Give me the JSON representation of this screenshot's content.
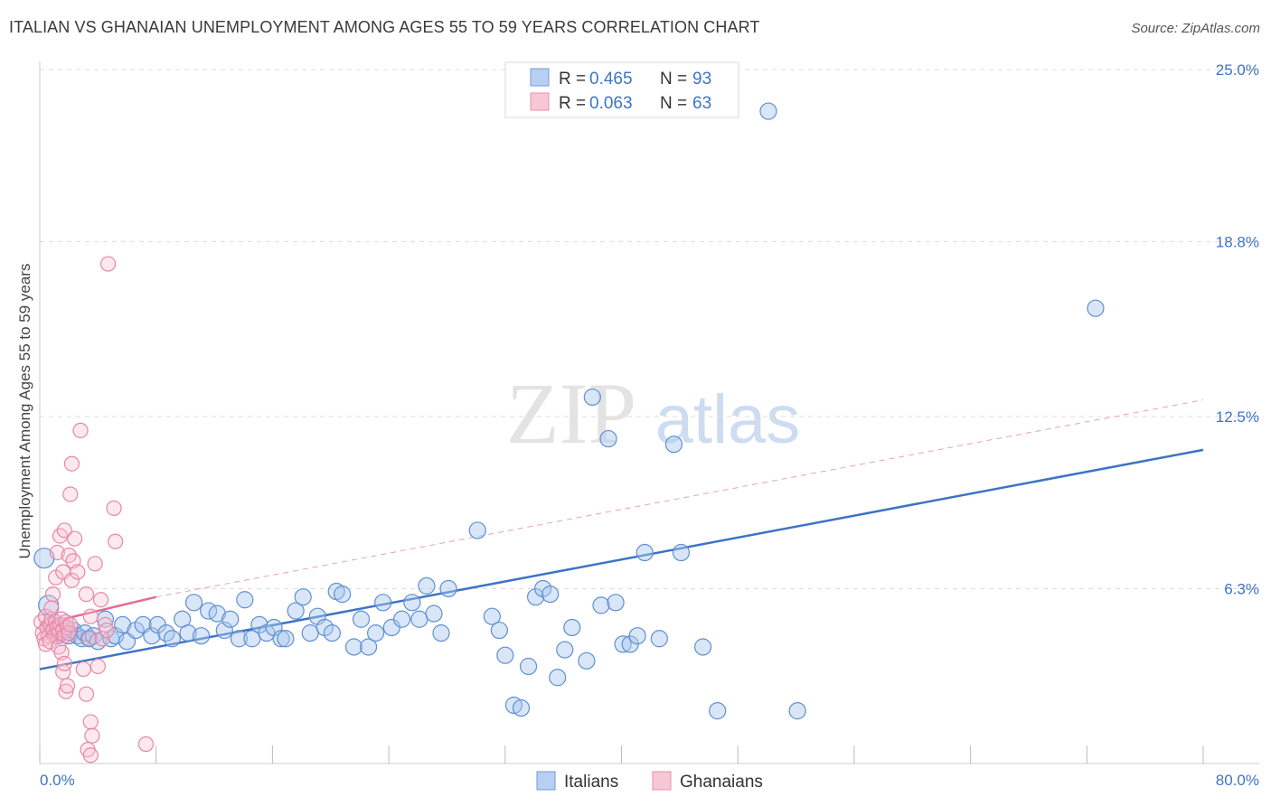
{
  "title": "ITALIAN VS GHANAIAN UNEMPLOYMENT AMONG AGES 55 TO 59 YEARS CORRELATION CHART",
  "source": "Source: ZipAtlas.com",
  "watermark": {
    "zip": "ZIP",
    "atlas": "atlas"
  },
  "colors": {
    "blue": "#3d74c4",
    "blue_fill": "#a9c8ee",
    "pink": "#e56b94",
    "pink_fill": "#f7bfd0",
    "grid": "#dddddd"
  },
  "legend": {
    "rows": [
      {
        "r_label": "R = ",
        "r_value": "0.465",
        "n_label": "N = ",
        "n_value": "93"
      },
      {
        "r_label": "R = ",
        "r_value": "0.063",
        "n_label": "N = ",
        "n_value": "63"
      }
    ]
  },
  "bottom_legend": [
    "Italians",
    "Ghanaians"
  ],
  "chart_data": {
    "type": "scatter",
    "title": "ITALIAN VS GHANAIAN UNEMPLOYMENT AMONG AGES 55 TO 59 YEARS CORRELATION CHART",
    "xlabel": "",
    "ylabel": "Unemployment Among Ages 55 to 59 years",
    "xlim": [
      0,
      80
    ],
    "ylim": [
      0,
      25
    ],
    "x_tick_labels": [
      "0.0%",
      "80.0%"
    ],
    "y_ticks": [
      6.3,
      12.5,
      18.8,
      25.0
    ],
    "y_tick_labels": [
      "6.3%",
      "12.5%",
      "18.8%",
      "25.0%"
    ],
    "series": [
      {
        "name": "Italians",
        "r": 0.465,
        "n": 93,
        "trend": {
          "x": [
            0,
            80
          ],
          "y": [
            3.4,
            11.3
          ],
          "style": "solid"
        },
        "points": [
          [
            0.3,
            7.4
          ],
          [
            0.6,
            5.7
          ],
          [
            0.8,
            5.0
          ],
          [
            1.0,
            4.8
          ],
          [
            1.2,
            4.6
          ],
          [
            1.5,
            4.7
          ],
          [
            1.8,
            4.9
          ],
          [
            2.0,
            4.6
          ],
          [
            2.3,
            4.8
          ],
          [
            2.6,
            4.6
          ],
          [
            2.9,
            4.5
          ],
          [
            3.1,
            4.7
          ],
          [
            3.4,
            4.5
          ],
          [
            3.7,
            4.6
          ],
          [
            4.0,
            4.4
          ],
          [
            4.5,
            5.2
          ],
          [
            4.9,
            4.5
          ],
          [
            5.2,
            4.6
          ],
          [
            5.7,
            5.0
          ],
          [
            6.0,
            4.4
          ],
          [
            6.6,
            4.8
          ],
          [
            7.1,
            5.0
          ],
          [
            7.7,
            4.6
          ],
          [
            8.1,
            5.0
          ],
          [
            8.7,
            4.7
          ],
          [
            9.1,
            4.5
          ],
          [
            9.8,
            5.2
          ],
          [
            10.2,
            4.7
          ],
          [
            10.6,
            5.8
          ],
          [
            11.1,
            4.6
          ],
          [
            11.6,
            5.5
          ],
          [
            12.2,
            5.4
          ],
          [
            12.7,
            4.8
          ],
          [
            13.1,
            5.2
          ],
          [
            13.7,
            4.5
          ],
          [
            14.1,
            5.9
          ],
          [
            14.6,
            4.5
          ],
          [
            15.1,
            5.0
          ],
          [
            15.6,
            4.7
          ],
          [
            16.1,
            4.9
          ],
          [
            16.6,
            4.5
          ],
          [
            16.9,
            4.5
          ],
          [
            17.6,
            5.5
          ],
          [
            18.1,
            6.0
          ],
          [
            18.6,
            4.7
          ],
          [
            19.1,
            5.3
          ],
          [
            19.6,
            4.9
          ],
          [
            20.1,
            4.7
          ],
          [
            20.4,
            6.2
          ],
          [
            20.8,
            6.1
          ],
          [
            21.6,
            4.2
          ],
          [
            22.1,
            5.2
          ],
          [
            22.6,
            4.2
          ],
          [
            23.1,
            4.7
          ],
          [
            23.6,
            5.8
          ],
          [
            24.2,
            4.9
          ],
          [
            24.9,
            5.2
          ],
          [
            25.6,
            5.8
          ],
          [
            26.1,
            5.2
          ],
          [
            26.6,
            6.4
          ],
          [
            27.1,
            5.4
          ],
          [
            27.6,
            4.7
          ],
          [
            28.1,
            6.3
          ],
          [
            30.1,
            8.4
          ],
          [
            31.1,
            5.3
          ],
          [
            31.6,
            4.8
          ],
          [
            32.0,
            3.9
          ],
          [
            32.6,
            2.1
          ],
          [
            33.1,
            2.0
          ],
          [
            33.6,
            3.5
          ],
          [
            34.1,
            6.0
          ],
          [
            34.6,
            6.3
          ],
          [
            35.1,
            6.1
          ],
          [
            35.6,
            3.1
          ],
          [
            36.1,
            4.1
          ],
          [
            36.6,
            4.9
          ],
          [
            37.6,
            3.7
          ],
          [
            38.0,
            13.2
          ],
          [
            38.6,
            5.7
          ],
          [
            39.1,
            11.7
          ],
          [
            39.6,
            5.8
          ],
          [
            40.1,
            4.3
          ],
          [
            40.6,
            4.3
          ],
          [
            41.1,
            4.6
          ],
          [
            41.6,
            7.6
          ],
          [
            42.6,
            4.5
          ],
          [
            43.6,
            11.5
          ],
          [
            44.1,
            7.6
          ],
          [
            45.6,
            4.2
          ],
          [
            46.6,
            1.9
          ],
          [
            50.1,
            23.5
          ],
          [
            52.1,
            1.9
          ],
          [
            72.6,
            16.4
          ]
        ]
      },
      {
        "name": "Ghanaians",
        "r": 0.063,
        "n": 63,
        "trend": {
          "x": [
            0,
            8
          ],
          "y": [
            5.0,
            6.0
          ],
          "style": "solid",
          "extension": {
            "x": [
              8,
              80
            ],
            "y": [
              6.0,
              13.1
            ],
            "style": "dashed"
          }
        },
        "points": [
          [
            0.1,
            5.1
          ],
          [
            0.2,
            4.7
          ],
          [
            0.3,
            4.5
          ],
          [
            0.4,
            5.3
          ],
          [
            0.5,
            4.9
          ],
          [
            0.6,
            4.6
          ],
          [
            0.7,
            5.0
          ],
          [
            0.8,
            5.2
          ],
          [
            0.9,
            4.8
          ],
          [
            1.0,
            4.6
          ],
          [
            1.1,
            5.1
          ],
          [
            1.2,
            4.9
          ],
          [
            1.3,
            4.7
          ],
          [
            1.4,
            5.0
          ],
          [
            1.5,
            5.2
          ],
          [
            1.6,
            4.8
          ],
          [
            1.7,
            4.6
          ],
          [
            1.8,
            5.1
          ],
          [
            1.9,
            4.9
          ],
          [
            2.0,
            4.7
          ],
          [
            2.1,
            5.0
          ],
          [
            0.4,
            4.3
          ],
          [
            0.7,
            4.4
          ],
          [
            1.3,
            4.2
          ],
          [
            0.9,
            6.1
          ],
          [
            1.1,
            6.7
          ],
          [
            1.6,
            6.9
          ],
          [
            1.2,
            7.6
          ],
          [
            1.4,
            8.2
          ],
          [
            1.7,
            8.4
          ],
          [
            2.0,
            7.5
          ],
          [
            2.2,
            6.6
          ],
          [
            2.3,
            7.3
          ],
          [
            2.4,
            8.1
          ],
          [
            2.1,
            9.7
          ],
          [
            2.2,
            10.8
          ],
          [
            2.8,
            12.0
          ],
          [
            4.7,
            18.0
          ],
          [
            0.8,
            5.6
          ],
          [
            1.5,
            4.0
          ],
          [
            1.6,
            3.3
          ],
          [
            1.7,
            3.6
          ],
          [
            1.8,
            2.6
          ],
          [
            1.9,
            2.8
          ],
          [
            2.6,
            6.9
          ],
          [
            3.2,
            6.1
          ],
          [
            3.4,
            4.5
          ],
          [
            3.5,
            5.3
          ],
          [
            3.8,
            7.2
          ],
          [
            4.2,
            5.9
          ],
          [
            4.0,
            3.5
          ],
          [
            4.3,
            4.5
          ],
          [
            4.5,
            5.0
          ],
          [
            4.6,
            4.8
          ],
          [
            3.0,
            3.4
          ],
          [
            3.2,
            2.5
          ],
          [
            3.5,
            1.5
          ],
          [
            3.6,
            1.0
          ],
          [
            3.3,
            0.5
          ],
          [
            3.5,
            0.3
          ],
          [
            5.1,
            9.2
          ],
          [
            5.2,
            8.0
          ],
          [
            7.3,
            0.7
          ]
        ]
      }
    ]
  }
}
